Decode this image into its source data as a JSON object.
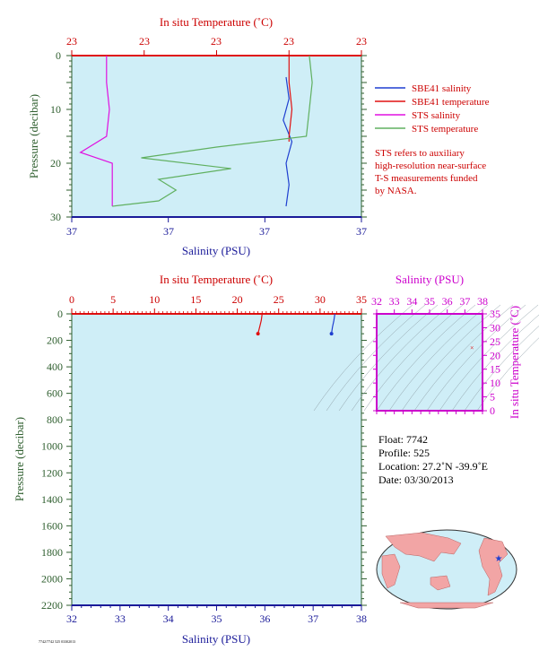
{
  "colors": {
    "plot_bg": "#cfeef7",
    "sbe41_salinity": "#1f3fd0",
    "sbe41_temperature": "#e01010",
    "sts_salinity": "#e010e0",
    "sts_temperature": "#60b060",
    "label_red": "#cc0000",
    "label_blue": "#1a1a99",
    "label_magenta": "#cc00cc",
    "label_green": "#2e5e2e"
  },
  "top_panel": {
    "top_axis_title": "In situ Temperature (˚C)",
    "top_ticks": [
      "23",
      "23",
      "23",
      "23",
      "23"
    ],
    "left_axis_title": "Pressure (decibar)",
    "left_ticks": [
      "0",
      "10",
      "20",
      "30"
    ],
    "bottom_ticks": [
      "37",
      "37",
      "37",
      "37"
    ],
    "bottom_axis_title": "Salinity (PSU)"
  },
  "legend": [
    {
      "label": "SBE41 salinity",
      "color": "#1f3fd0"
    },
    {
      "label": "SBE41 temperature",
      "color": "#e01010"
    },
    {
      "label": "STS salinity",
      "color": "#e010e0"
    },
    {
      "label": "STS temperature",
      "color": "#60b060"
    }
  ],
  "note_lines": [
    "STS refers to auxiliary",
    "high-resolution near-surface",
    "T-S measurements funded",
    "by NASA."
  ],
  "main_panel": {
    "top_axis_title": "In situ Temperature (˚C)",
    "top_ticks": [
      "0",
      "5",
      "10",
      "15",
      "20",
      "25",
      "30",
      "35"
    ],
    "left_axis_title": "Pressure (decibar)",
    "left_ticks": [
      "0",
      "200",
      "400",
      "600",
      "800",
      "1000",
      "1200",
      "1400",
      "1600",
      "1800",
      "2000",
      "2200"
    ],
    "bottom_ticks": [
      "32",
      "33",
      "34",
      "35",
      "36",
      "37",
      "38"
    ],
    "bottom_axis_title": "Salinity (PSU)"
  },
  "ts_panel": {
    "top_axis_title": "Salinity (PSU)",
    "top_ticks": [
      "32",
      "33",
      "34",
      "35",
      "36",
      "37",
      "38"
    ],
    "right_axis_title": "In situ Temperature (˚C)",
    "right_ticks": [
      "35",
      "30",
      "25",
      "20",
      "15",
      "10",
      "5",
      "0"
    ]
  },
  "info": {
    "float_line": "Float:  7742",
    "profile_line": "Profile:  525",
    "location_line": "Location:  27.2˚N  -39.9˚E",
    "date_line": "Date:  03/30/2013"
  },
  "footer_code": "7742/7742 525 03302013",
  "chart_data": [
    {
      "type": "line",
      "name": "top-panel",
      "y_axis": {
        "label": "Pressure (decibar)",
        "range": [
          0,
          30
        ],
        "inverted": true
      },
      "x_axis_top": {
        "label": "In situ Temperature (˚C)"
      },
      "x_axis_bottom": {
        "label": "Salinity (PSU)"
      },
      "series": [
        {
          "name": "SBE41 salinity",
          "pressure": [
            4,
            8,
            12,
            16,
            20,
            24,
            28
          ],
          "x_frac": [
            0.74,
            0.75,
            0.73,
            0.76,
            0.74,
            0.75,
            0.74
          ]
        },
        {
          "name": "SBE41 temperature",
          "pressure": [
            0,
            5,
            10,
            15,
            16
          ],
          "x_frac": [
            0.75,
            0.75,
            0.76,
            0.75,
            0.75
          ]
        },
        {
          "name": "STS salinity",
          "pressure": [
            0,
            5,
            10,
            15,
            18,
            20,
            25,
            28
          ],
          "x_frac": [
            0.12,
            0.12,
            0.13,
            0.12,
            0.03,
            0.14,
            0.14,
            0.14
          ]
        },
        {
          "name": "STS temperature",
          "pressure": [
            0,
            5,
            10,
            15,
            17,
            19,
            21,
            23,
            25,
            27,
            28
          ],
          "x_frac": [
            0.82,
            0.83,
            0.82,
            0.81,
            0.5,
            0.24,
            0.55,
            0.3,
            0.36,
            0.3,
            0.14
          ]
        }
      ]
    },
    {
      "type": "line",
      "name": "main-panel",
      "y_axis": {
        "label": "Pressure (decibar)",
        "range": [
          0,
          2200
        ],
        "inverted": true
      },
      "x_axis_top": {
        "label": "In situ Temperature (˚C)",
        "range": [
          0,
          35
        ]
      },
      "x_axis_bottom": {
        "label": "Salinity (PSU)",
        "range": [
          32,
          38
        ]
      },
      "series": [
        {
          "name": "SBE41 temperature",
          "pressure": [
            0,
            50,
            100,
            150
          ],
          "temperature": [
            23.0,
            22.9,
            22.7,
            22.5
          ]
        },
        {
          "name": "SBE41 salinity",
          "pressure": [
            0,
            50,
            100,
            150
          ],
          "salinity": [
            37.45,
            37.43,
            37.4,
            37.38
          ]
        }
      ]
    },
    {
      "type": "scatter",
      "name": "ts-panel",
      "x_axis": {
        "label": "Salinity (PSU)",
        "range": [
          32,
          38
        ]
      },
      "y_axis": {
        "label": "In situ Temperature (˚C)",
        "range": [
          0,
          35
        ]
      },
      "points": [
        {
          "salinity": 37.4,
          "temperature": 22.9
        }
      ]
    }
  ]
}
